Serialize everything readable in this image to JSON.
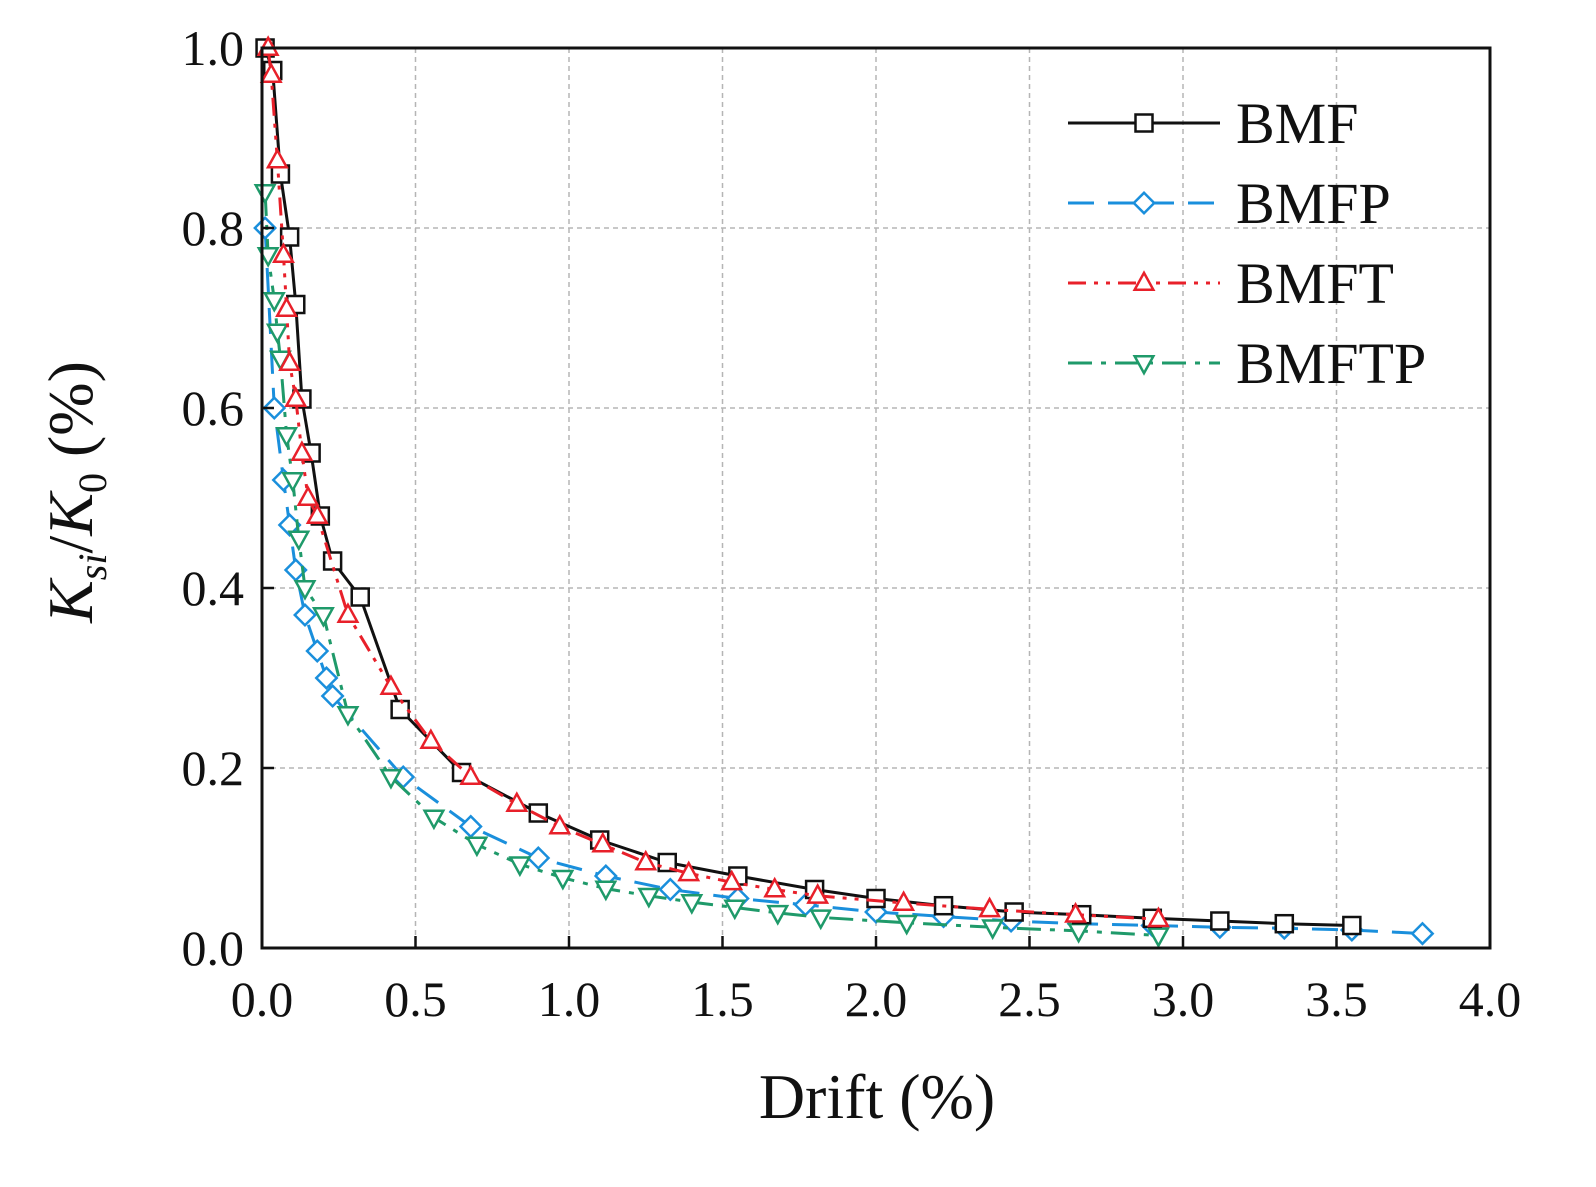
{
  "chart_data": {
    "type": "line",
    "title": "",
    "xlabel": "Drift (%)",
    "ylabel": {
      "k1": "K",
      "sub1": "si",
      "sep": "/",
      "k2": "K",
      "sub2": "0",
      "unit": " (%)"
    },
    "xlim": [
      0,
      4.0
    ],
    "ylim": [
      0,
      1.0
    ],
    "xticks": [
      "0.0",
      "0.5",
      "1.0",
      "1.5",
      "2.0",
      "2.5",
      "3.0",
      "3.5",
      "4.0"
    ],
    "yticks": [
      "0.0",
      "0.2",
      "0.4",
      "0.6",
      "0.8",
      "1.0"
    ],
    "grid": true,
    "legend_position": "top-right",
    "series": [
      {
        "name": "BMF",
        "color": "#111111",
        "marker": "square",
        "linestyle": "solid",
        "x": [
          0.01,
          0.035,
          0.06,
          0.09,
          0.11,
          0.13,
          0.16,
          0.19,
          0.23,
          0.32,
          0.45,
          0.65,
          0.9,
          1.1,
          1.32,
          1.55,
          1.8,
          2.0,
          2.22,
          2.45,
          2.67,
          2.9,
          3.12,
          3.33,
          3.55
        ],
        "y": [
          1.0,
          0.975,
          0.86,
          0.79,
          0.715,
          0.61,
          0.55,
          0.48,
          0.43,
          0.39,
          0.265,
          0.195,
          0.15,
          0.12,
          0.095,
          0.08,
          0.065,
          0.055,
          0.047,
          0.04,
          0.037,
          0.033,
          0.03,
          0.027,
          0.025
        ]
      },
      {
        "name": "BMFP",
        "color": "#1a8fdc",
        "marker": "diamond",
        "linestyle": "dashed",
        "x": [
          0.01,
          0.04,
          0.07,
          0.09,
          0.11,
          0.14,
          0.18,
          0.21,
          0.23,
          0.46,
          0.68,
          0.9,
          1.12,
          1.33,
          1.55,
          1.77,
          2.0,
          2.22,
          2.44,
          2.66,
          2.9,
          3.12,
          3.33,
          3.55,
          3.78
        ],
        "y": [
          0.8,
          0.6,
          0.52,
          0.47,
          0.42,
          0.37,
          0.33,
          0.3,
          0.28,
          0.19,
          0.135,
          0.1,
          0.08,
          0.065,
          0.055,
          0.048,
          0.04,
          0.035,
          0.03,
          0.027,
          0.025,
          0.023,
          0.022,
          0.02,
          0.016
        ]
      },
      {
        "name": "BMFT",
        "color": "#e8202a",
        "marker": "triangle-up",
        "linestyle": "dash-dot-dot",
        "x": [
          0.02,
          0.03,
          0.05,
          0.07,
          0.08,
          0.09,
          0.11,
          0.13,
          0.15,
          0.18,
          0.28,
          0.42,
          0.55,
          0.68,
          0.83,
          0.97,
          1.11,
          1.25,
          1.39,
          1.53,
          1.67,
          1.81,
          2.09,
          2.37,
          2.65,
          2.92
        ],
        "y": [
          1.0,
          0.97,
          0.875,
          0.77,
          0.71,
          0.65,
          0.61,
          0.55,
          0.5,
          0.48,
          0.37,
          0.29,
          0.23,
          0.19,
          0.16,
          0.135,
          0.115,
          0.095,
          0.083,
          0.073,
          0.065,
          0.058,
          0.05,
          0.043,
          0.037,
          0.032
        ]
      },
      {
        "name": "BMFTP",
        "color": "#1f9a6a",
        "marker": "triangle-down",
        "linestyle": "dash-dot",
        "x": [
          0.01,
          0.02,
          0.04,
          0.05,
          0.06,
          0.08,
          0.1,
          0.12,
          0.14,
          0.2,
          0.28,
          0.42,
          0.56,
          0.7,
          0.84,
          0.98,
          1.12,
          1.26,
          1.4,
          1.54,
          1.68,
          1.82,
          2.1,
          2.38,
          2.66,
          2.92
        ],
        "y": [
          0.84,
          0.77,
          0.72,
          0.685,
          0.655,
          0.57,
          0.52,
          0.455,
          0.4,
          0.37,
          0.26,
          0.19,
          0.145,
          0.115,
          0.093,
          0.078,
          0.066,
          0.058,
          0.051,
          0.045,
          0.039,
          0.034,
          0.028,
          0.023,
          0.019,
          0.014
        ]
      }
    ]
  }
}
